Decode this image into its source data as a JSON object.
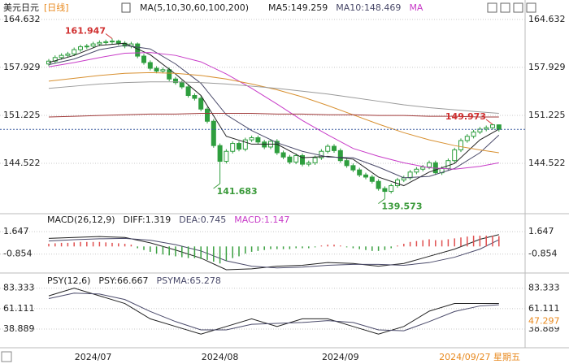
{
  "chart_data": [
    {
      "type": "candlestick",
      "title": "美元日元",
      "period": "[日线]",
      "indicator": "MA(5,10,30,60,100,200)",
      "categories": [
        null,
        null,
        null,
        null,
        null,
        null,
        null,
        "2024/07",
        null,
        null,
        null,
        null,
        null,
        null,
        null,
        null,
        null,
        null,
        null,
        null,
        null,
        null,
        null,
        null,
        null,
        null,
        null,
        "2024/08",
        null,
        null,
        null,
        null,
        null,
        null,
        null,
        null,
        null,
        null,
        null,
        null,
        null,
        null,
        null,
        null,
        null,
        null,
        "2024/09",
        null,
        null,
        null,
        null,
        null,
        null,
        null,
        null,
        null,
        null,
        null,
        null,
        null,
        null,
        null,
        null,
        null,
        null,
        null,
        null,
        null,
        null,
        null,
        null,
        null
      ],
      "current_date": "2024/09/27 星期五",
      "open": [
        158.4,
        158.8,
        159.3,
        159.6,
        159.8,
        160.4,
        160.8,
        160.9,
        161.2,
        161.4,
        161.5,
        161.6,
        161.3,
        160.9,
        161.2,
        159.5,
        158.6,
        157.8,
        157.4,
        157.6,
        156.3,
        155.8,
        155.2,
        154.0,
        153.6,
        152.1,
        150.4,
        147.0,
        144.8,
        146.2,
        147.3,
        146.5,
        147.8,
        148.1,
        147.5,
        146.8,
        147.6,
        146.0,
        145.4,
        144.7,
        145.6,
        144.4,
        144.6,
        145.3,
        146.2,
        146.9,
        146.3,
        144.9,
        144.2,
        143.6,
        142.9,
        142.6,
        142.0,
        141.0,
        140.6,
        141.4,
        142.2,
        142.5,
        143.3,
        143.7,
        144.0,
        144.6,
        143.2,
        143.8,
        144.9,
        146.4,
        147.7,
        148.3,
        148.9,
        149.3,
        149.5,
        149.9
      ],
      "high": [
        159.1,
        159.6,
        159.9,
        160.1,
        160.7,
        161.1,
        161.2,
        161.5,
        161.7,
        161.8,
        161.947,
        161.8,
        161.6,
        161.5,
        161.4,
        159.8,
        158.9,
        158.1,
        157.9,
        157.9,
        156.6,
        156.1,
        155.5,
        154.3,
        153.9,
        152.4,
        150.7,
        147.3,
        146.5,
        147.6,
        147.6,
        148.1,
        148.4,
        148.4,
        147.8,
        147.9,
        147.9,
        146.3,
        145.7,
        145.9,
        145.9,
        144.9,
        145.6,
        146.5,
        147.2,
        147.2,
        146.6,
        145.2,
        144.5,
        143.9,
        143.2,
        142.9,
        142.3,
        141.3,
        141.7,
        142.5,
        142.8,
        143.6,
        144.0,
        144.3,
        144.9,
        144.9,
        144.1,
        145.2,
        146.7,
        148.0,
        148.6,
        149.2,
        149.6,
        149.8,
        149.973,
        149.95
      ],
      "low": [
        158.1,
        158.5,
        159.0,
        159.3,
        159.5,
        160.1,
        160.5,
        160.6,
        160.9,
        161.1,
        161.2,
        161.0,
        160.6,
        160.6,
        159.2,
        158.3,
        157.5,
        157.1,
        157.1,
        156.0,
        155.5,
        154.9,
        153.7,
        153.3,
        151.8,
        150.1,
        146.7,
        141.683,
        144.5,
        145.9,
        146.2,
        146.2,
        147.5,
        147.2,
        146.5,
        146.5,
        145.7,
        145.1,
        144.4,
        144.4,
        144.1,
        144.1,
        144.3,
        145.0,
        145.9,
        146.0,
        144.6,
        143.9,
        143.3,
        142.6,
        142.3,
        141.7,
        140.7,
        139.573,
        140.3,
        141.1,
        141.9,
        142.2,
        143.0,
        143.4,
        143.7,
        142.9,
        142.9,
        143.5,
        144.6,
        146.1,
        147.4,
        148.0,
        148.6,
        149.0,
        149.2,
        148.96
      ],
      "close": [
        158.8,
        159.3,
        159.6,
        159.8,
        160.4,
        160.8,
        160.9,
        161.2,
        161.4,
        161.5,
        161.6,
        161.3,
        160.9,
        161.2,
        159.5,
        158.6,
        157.8,
        157.4,
        157.6,
        156.3,
        155.8,
        155.2,
        154.0,
        153.6,
        152.1,
        150.4,
        147.0,
        144.8,
        146.2,
        147.3,
        146.5,
        147.8,
        148.1,
        147.5,
        146.8,
        147.6,
        146.0,
        145.4,
        144.7,
        145.6,
        144.4,
        144.6,
        145.3,
        146.2,
        146.9,
        146.3,
        144.9,
        144.2,
        143.6,
        142.9,
        142.6,
        142.0,
        141.0,
        140.6,
        141.4,
        142.2,
        142.5,
        143.3,
        143.7,
        144.0,
        144.6,
        143.2,
        143.8,
        144.9,
        146.4,
        147.7,
        148.3,
        148.9,
        149.3,
        149.5,
        149.9,
        149.26
      ],
      "up_color": "#2e9e3e",
      "down_color": "#2e9e3e",
      "series": [
        {
          "name": "MA5:149.259",
          "color": "#222222",
          "x": [
            0,
            4,
            8,
            12,
            16,
            20,
            24,
            28,
            32,
            36,
            40,
            44,
            48,
            52,
            56,
            60,
            64,
            68,
            71
          ],
          "values": [
            158.6,
            159.6,
            161.0,
            161.3,
            159.7,
            157.0,
            154.0,
            148.3,
            147.2,
            147.2,
            145.3,
            145.5,
            145.1,
            142.6,
            141.4,
            143.3,
            144.5,
            147.8,
            149.3
          ]
        },
        {
          "name": "MA10:148.469",
          "color": "#4a4a6a",
          "x": [
            0,
            4,
            8,
            12,
            16,
            20,
            24,
            28,
            32,
            36,
            40,
            44,
            48,
            52,
            56,
            60,
            64,
            68,
            71
          ],
          "values": [
            158.3,
            159.1,
            160.4,
            161.0,
            160.5,
            158.4,
            155.7,
            151.3,
            149.1,
            147.4,
            146.2,
            145.4,
            145.3,
            144.0,
            142.5,
            142.7,
            143.8,
            146.0,
            148.47
          ]
        },
        {
          "name": "MA",
          "color": "#c83cc8",
          "x": [
            0,
            4,
            8,
            12,
            16,
            20,
            24,
            28,
            32,
            36,
            40,
            44,
            48,
            52,
            56,
            60,
            64,
            68,
            71
          ],
          "values": [
            158.0,
            158.6,
            159.3,
            159.9,
            160.0,
            159.6,
            158.7,
            157.0,
            155.0,
            152.8,
            150.5,
            148.5,
            146.6,
            145.5,
            144.6,
            143.9,
            143.7,
            144.1,
            144.6
          ]
        },
        {
          "color": "#d89030",
          "x": [
            0,
            4,
            8,
            12,
            16,
            20,
            24,
            28,
            32,
            36,
            40,
            44,
            48,
            52,
            56,
            60,
            64,
            68,
            71
          ],
          "values": [
            156.0,
            156.4,
            156.8,
            157.1,
            157.2,
            157.1,
            156.8,
            156.3,
            155.6,
            154.8,
            153.8,
            152.6,
            151.3,
            150.0,
            148.8,
            147.8,
            147.0,
            146.4,
            146.0
          ]
        },
        {
          "color": "#9a9a9a",
          "x": [
            0,
            4,
            8,
            12,
            16,
            20,
            24,
            28,
            32,
            36,
            40,
            44,
            48,
            52,
            56,
            60,
            64,
            68,
            71
          ],
          "values": [
            155.0,
            155.3,
            155.6,
            155.8,
            155.9,
            155.9,
            155.8,
            155.6,
            155.3,
            155.0,
            154.6,
            154.2,
            153.7,
            153.2,
            152.7,
            152.3,
            152.0,
            151.7,
            151.5
          ]
        },
        {
          "color": "#a03a3a",
          "x": [
            0,
            4,
            8,
            12,
            16,
            20,
            24,
            28,
            32,
            36,
            40,
            44,
            48,
            52,
            56,
            60,
            64,
            68,
            71
          ],
          "values": [
            151.0,
            151.1,
            151.2,
            151.3,
            151.4,
            151.4,
            151.5,
            151.5,
            151.5,
            151.4,
            151.4,
            151.3,
            151.3,
            151.2,
            151.2,
            151.1,
            151.1,
            151.0,
            151.0
          ]
        }
      ],
      "annotations": [
        {
          "x": 10,
          "value": 161.947,
          "color": "#d03030"
        },
        {
          "x": 27,
          "value": 141.683,
          "color": "#3a9a3a"
        },
        {
          "x": 53,
          "value": 139.573,
          "color": "#3a9a3a"
        },
        {
          "x": 70,
          "value": 149.973,
          "color": "#d03030"
        }
      ],
      "last_price": 149.259,
      "ylim": [
        137.6,
        165.75
      ],
      "yticks": [
        144.522,
        151.225,
        157.929,
        164.632
      ],
      "grid": true
    },
    {
      "type": "macd",
      "title": "MACD(26,12,9)",
      "series": [
        {
          "name": "DIFF:1.319",
          "color": "#222222",
          "x": [
            0,
            4,
            8,
            12,
            16,
            20,
            24,
            28,
            32,
            36,
            40,
            44,
            48,
            52,
            56,
            60,
            64,
            68,
            71
          ],
          "values": [
            0.9,
            1.0,
            1.1,
            1.0,
            0.4,
            -0.4,
            -1.3,
            -2.6,
            -2.5,
            -2.2,
            -2.1,
            -1.8,
            -1.9,
            -2.2,
            -1.9,
            -1.1,
            -0.3,
            0.8,
            1.319
          ]
        },
        {
          "name": "DEA:0.745",
          "color": "#4a4a6a",
          "x": [
            0,
            4,
            8,
            12,
            16,
            20,
            24,
            28,
            32,
            36,
            40,
            44,
            48,
            52,
            56,
            60,
            64,
            68,
            71
          ],
          "values": [
            0.6,
            0.75,
            0.85,
            0.9,
            0.7,
            0.2,
            -0.5,
            -1.6,
            -2.2,
            -2.4,
            -2.3,
            -2.1,
            -2.0,
            -2.0,
            -2.1,
            -1.8,
            -1.2,
            -0.3,
            0.745
          ]
        },
        {
          "name": "MACD:1.147",
          "color": "#c83cc8",
          "up_color": "#e05050",
          "down_color": "#3aa040",
          "bars": true,
          "values": [
            0.3,
            0.35,
            0.4,
            0.4,
            0.45,
            0.5,
            0.5,
            0.5,
            0.5,
            0.45,
            0.4,
            0.35,
            0.3,
            0.2,
            -0.2,
            -0.4,
            -0.6,
            -0.8,
            -0.9,
            -1.0,
            -1.1,
            -1.2,
            -1.3,
            -1.3,
            -1.4,
            -1.5,
            -1.7,
            -1.9,
            -1.6,
            -1.3,
            -1.1,
            -0.8,
            -0.6,
            -0.5,
            -0.4,
            -0.3,
            -0.3,
            -0.3,
            -0.3,
            -0.2,
            -0.2,
            -0.2,
            -0.1,
            0.1,
            0.2,
            0.2,
            0.1,
            -0.1,
            -0.2,
            -0.3,
            -0.4,
            -0.5,
            -0.5,
            -0.4,
            -0.2,
            0.1,
            0.3,
            0.5,
            0.6,
            0.7,
            0.8,
            0.7,
            0.7,
            0.8,
            0.9,
            1.0,
            1.1,
            1.2,
            1.2,
            1.2,
            1.2,
            1.147
          ]
        }
      ],
      "ylim": [
        -2.78,
        3.47
      ],
      "yticks": [
        -0.854,
        1.647
      ],
      "grid": true
    },
    {
      "type": "psy",
      "title": "PSY(12,6)",
      "series": [
        {
          "name": "PSY:66.667",
          "color": "#222222",
          "x": [
            0,
            4,
            8,
            12,
            16,
            20,
            24,
            28,
            32,
            36,
            40,
            44,
            48,
            52,
            56,
            60,
            64,
            68,
            71
          ],
          "values": [
            75,
            83.333,
            75,
            66.667,
            50,
            41.667,
            33.333,
            41.667,
            50,
            41.667,
            50,
            50,
            41.667,
            33.333,
            41.667,
            58.333,
            66.667,
            66.667,
            66.667
          ]
        },
        {
          "name": "PSYMA:65.278",
          "color": "#4a4a6a",
          "x": [
            0,
            4,
            8,
            12,
            16,
            20,
            24,
            28,
            32,
            36,
            40,
            44,
            48,
            52,
            56,
            60,
            64,
            68,
            71
          ],
          "values": [
            72,
            78,
            77,
            71,
            58,
            47,
            38,
            38,
            44,
            45,
            46,
            48,
            46,
            38,
            37,
            47,
            58,
            64,
            65.278
          ]
        }
      ],
      "marker": {
        "value": 47.297,
        "color": "#e8891e"
      },
      "ylim": [
        19.4,
        98.1
      ],
      "yticks": [
        38.889,
        61.111,
        83.333
      ],
      "grid": true
    }
  ]
}
